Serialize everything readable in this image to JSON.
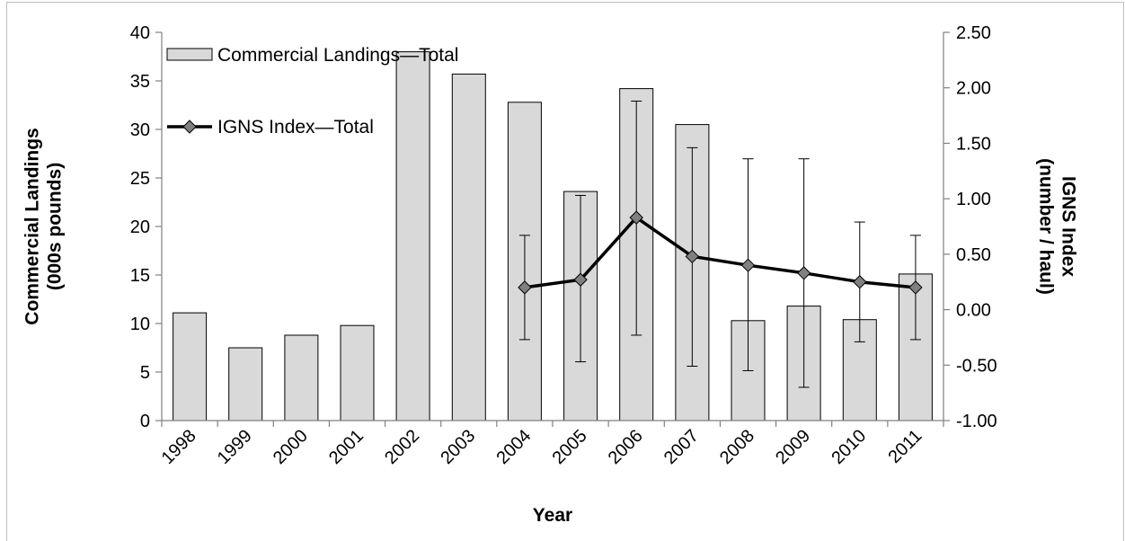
{
  "chart_data": {
    "type": "bar+line",
    "title": "",
    "xlabel": "Year",
    "ylabel_left": "Commercial Landings\n(000s pounds)",
    "ylabel_right": "IGNS Index\n(number / haul)",
    "ylim_left": [
      0,
      40
    ],
    "ylim_right": [
      -1.0,
      2.5
    ],
    "yticks_left": [
      "0",
      "5",
      "10",
      "15",
      "20",
      "25",
      "30",
      "35",
      "40"
    ],
    "yticks_right": [
      "-1.00",
      "-0.50",
      "0.00",
      "0.50",
      "1.00",
      "1.50",
      "2.00",
      "2.50"
    ],
    "categories": [
      "1998",
      "1999",
      "2000",
      "2001",
      "2002",
      "2003",
      "2004",
      "2005",
      "2006",
      "2007",
      "2008",
      "2009",
      "2010",
      "2011"
    ],
    "grid": false,
    "legend_position": "top-left",
    "series": [
      {
        "name": "Commercial Landings—Total",
        "type": "bar",
        "axis": "left",
        "color": "#d9d9d9",
        "values": [
          11.1,
          7.5,
          8.8,
          9.8,
          38.0,
          35.7,
          32.8,
          23.6,
          34.2,
          30.5,
          10.3,
          11.8,
          10.4,
          15.1
        ]
      },
      {
        "name": "IGNS Index—Total",
        "type": "line",
        "axis": "right",
        "color": "#000000",
        "marker_color": "#808080",
        "x": [
          "2004",
          "2005",
          "2006",
          "2007",
          "2008",
          "2009",
          "2010",
          "2011"
        ],
        "values": [
          0.2,
          0.27,
          0.83,
          0.48,
          0.4,
          0.33,
          0.25,
          0.2
        ],
        "error_low": [
          -0.27,
          -0.47,
          -0.23,
          -0.51,
          -0.55,
          -0.7,
          -0.29,
          -0.27
        ],
        "error_high": [
          0.67,
          1.03,
          1.88,
          1.46,
          1.36,
          1.36,
          0.79,
          0.67
        ]
      }
    ]
  }
}
